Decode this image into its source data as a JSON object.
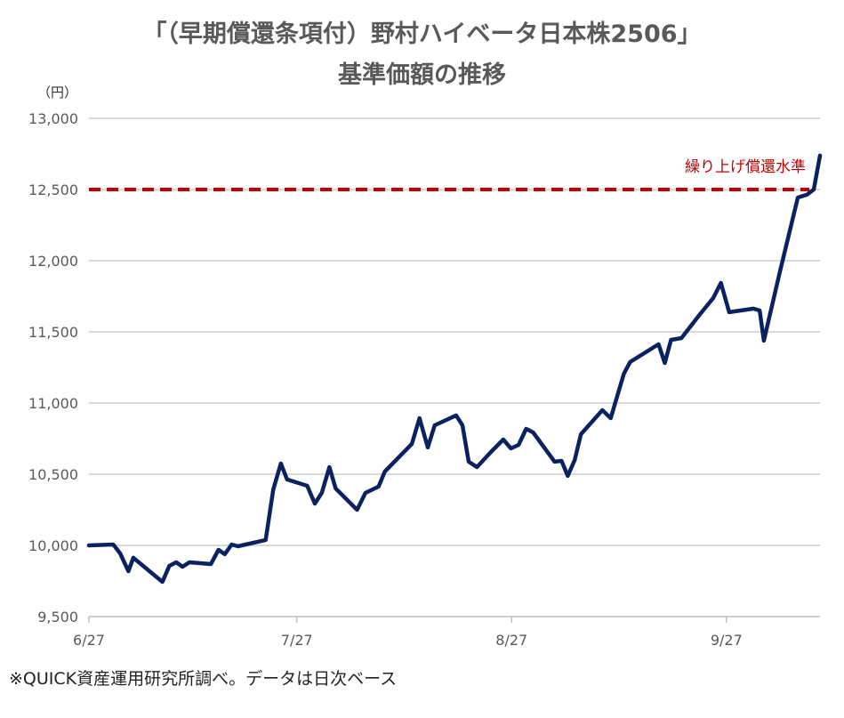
{
  "chart_data": {
    "type": "line",
    "title": "「（早期償還条項付）野村ハイベータ日本株2506」",
    "subtitle": "基準価額の推移",
    "ylabel": "（円）",
    "xlabel": "",
    "ylim": [
      9500,
      13000
    ],
    "yticks": [
      9500,
      10000,
      10500,
      11000,
      11500,
      12000,
      12500,
      13000
    ],
    "ytick_labels": [
      "9,500",
      "10,000",
      "10,500",
      "11,000",
      "11,500",
      "12,000",
      "12,500",
      "13,000"
    ],
    "x_unit": "days since 6/27",
    "xticks": [
      0,
      30,
      61,
      92
    ],
    "xtick_labels": [
      "6/27",
      "7/27",
      "8/27",
      "9/27"
    ],
    "xlim": [
      0,
      105.5
    ],
    "grid": true,
    "series": [
      {
        "name": "基準価額",
        "color": "#0b2260",
        "x": [
          0,
          3.5,
          4.5,
          5.7,
          6.4,
          10.6,
          11.6,
          12.6,
          13.5,
          14.5,
          17.6,
          18.7,
          19.6,
          20.6,
          21.5,
          25.5,
          26.6,
          27.7,
          28.6,
          31.5,
          32.6,
          33.6,
          34.7,
          35.6,
          38.7,
          39.9,
          41.8,
          42.7,
          46.6,
          47.7,
          48.9,
          49.9,
          53,
          53.9,
          54.8,
          56,
          57.9,
          59.8,
          60.9,
          62,
          63.1,
          64.1,
          67.2,
          68.2,
          69.1,
          70.1,
          71,
          74.1,
          75.3,
          76.1,
          77.2,
          78.1,
          82.2,
          83.1,
          84,
          85.5,
          88.2,
          90.1,
          91.2,
          92.4,
          95.9,
          96.8,
          97.4,
          99.7,
          102.3,
          103.6,
          104.6,
          105.5
        ],
        "values": [
          10000,
          10006,
          9944,
          9819,
          9913,
          9744,
          9856,
          9881,
          9850,
          9881,
          9869,
          9969,
          9938,
          10006,
          9994,
          10038,
          10394,
          10575,
          10463,
          10419,
          10294,
          10369,
          10550,
          10400,
          10250,
          10369,
          10413,
          10519,
          10713,
          10894,
          10688,
          10844,
          10913,
          10844,
          10588,
          10550,
          10650,
          10744,
          10681,
          10706,
          10819,
          10794,
          10588,
          10594,
          10488,
          10600,
          10781,
          10950,
          10894,
          11025,
          11206,
          11288,
          11413,
          11281,
          11444,
          11456,
          11625,
          11738,
          11844,
          11638,
          11663,
          11650,
          11438,
          11919,
          12444,
          12463,
          12500,
          12738
        ]
      }
    ],
    "reference_line": {
      "value": 12500,
      "label": "繰り上げ償還水準",
      "color": "#c00000",
      "style": "dashed"
    }
  },
  "footnote": "※QUICK資産運用研究所調べ。データは日次ベース"
}
